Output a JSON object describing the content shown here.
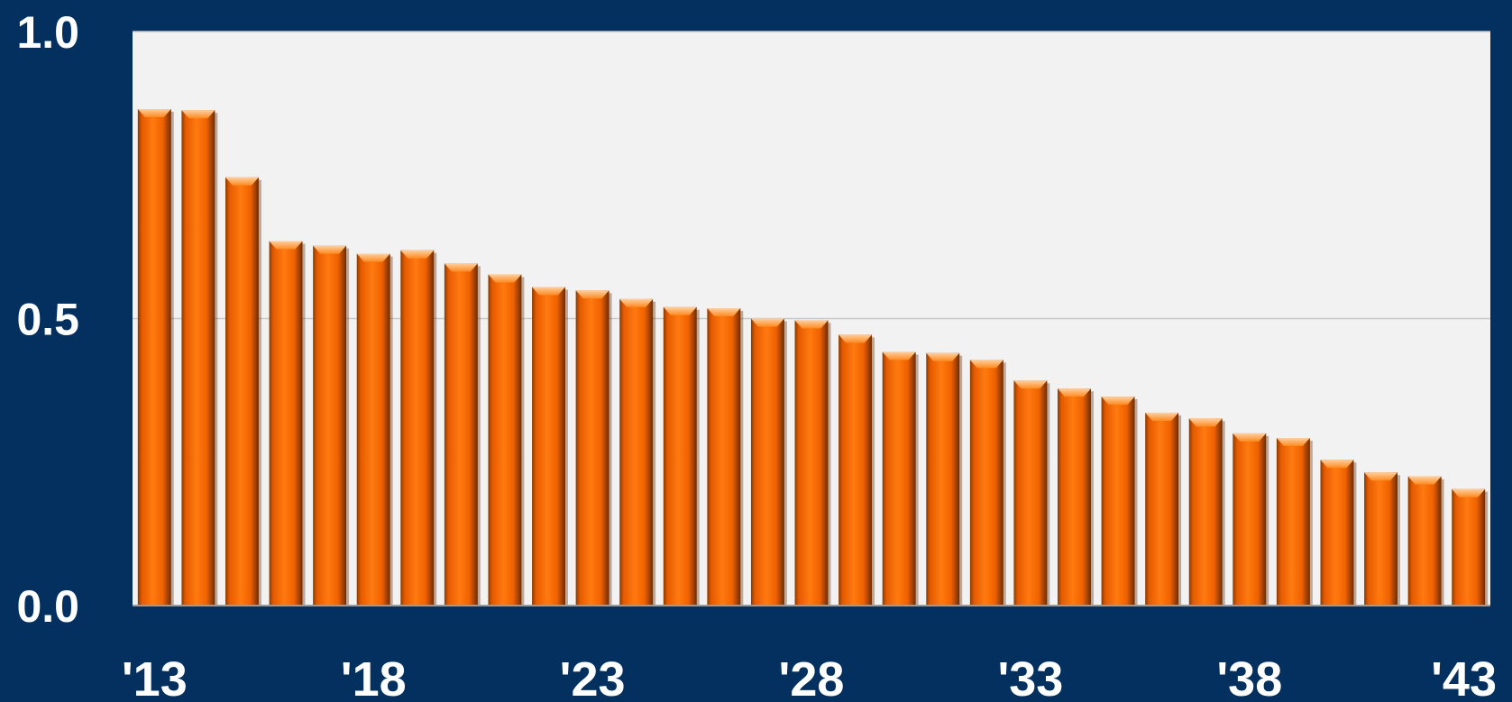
{
  "chart_data": {
    "type": "bar",
    "title": "",
    "xlabel": "",
    "ylabel": "",
    "x_tick_labels": [
      "'13",
      "'18",
      "'23",
      "'28",
      "'33",
      "'38",
      "'43"
    ],
    "y_tick_labels": [
      "1.0",
      "0.5",
      "0.0"
    ],
    "categories": [
      "2013",
      "2014",
      "2015",
      "2016",
      "2017",
      "2018",
      "2019",
      "2020",
      "2021",
      "2022",
      "2023",
      "2024",
      "2025",
      "2026",
      "2027",
      "2028",
      "2029",
      "2030",
      "2031",
      "2032",
      "2033",
      "2034",
      "2035",
      "2036",
      "2037",
      "2038",
      "2039",
      "2040",
      "2041",
      "2042",
      "2043"
    ],
    "values": [
      0.865,
      0.863,
      0.746,
      0.635,
      0.627,
      0.613,
      0.619,
      0.596,
      0.577,
      0.555,
      0.549,
      0.534,
      0.52,
      0.518,
      0.5,
      0.497,
      0.472,
      0.442,
      0.44,
      0.428,
      0.392,
      0.378,
      0.364,
      0.336,
      0.326,
      0.3,
      0.292,
      0.254,
      0.232,
      0.225,
      0.203
    ],
    "ylim": [
      0,
      1.0
    ],
    "yticks": [
      0,
      0.5,
      1.0
    ],
    "grid": true,
    "legend": "none",
    "colors": {
      "background": "#03305f",
      "plot_area": "#f2f2f2",
      "bar": "#ff6a00",
      "bar_highlight": "#ff9a40",
      "bar_shadow": "#a83f00",
      "gridline": "#c8c8c8",
      "text": "#ffffff"
    }
  }
}
